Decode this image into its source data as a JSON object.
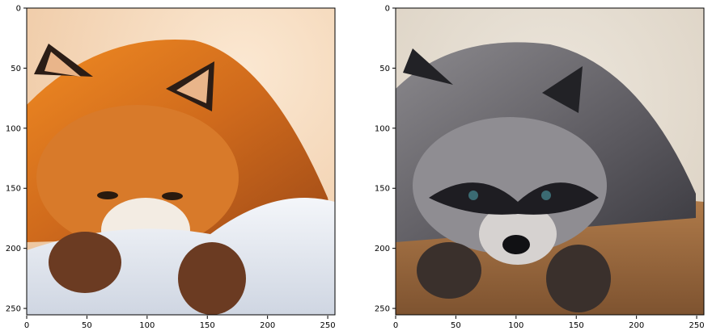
{
  "figure": {
    "panels": [
      {
        "subject": "red fox lying on snow",
        "x_ticks": [
          "0",
          "50",
          "100",
          "150",
          "200",
          "250"
        ],
        "y_ticks": [
          "0",
          "50",
          "100",
          "150",
          "200",
          "250"
        ]
      },
      {
        "subject": "raccoon lying on ground (generated translation)",
        "x_ticks": [
          "0",
          "50",
          "100",
          "150",
          "200",
          "250"
        ],
        "y_ticks": [
          "0",
          "50",
          "100",
          "150",
          "200",
          "250"
        ]
      }
    ]
  },
  "colors": {
    "fox_fur": "#d9731c",
    "fox_background": "#f6dcc0",
    "snow": "#e8ecf3",
    "raccoon_fur": "#7c7a7d",
    "raccoon_background": "#e4dccf",
    "ground": "#9a6a3f"
  }
}
